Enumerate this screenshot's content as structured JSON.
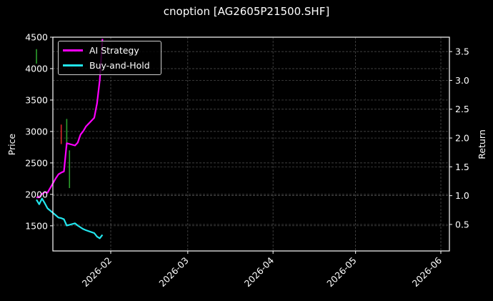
{
  "chart_data": {
    "type": "line",
    "title": "cnoption [AG2605P21500.SHF]",
    "xlabel": "",
    "ylabel": "Price",
    "y2label": "Return",
    "ylim": [
      1100,
      4500
    ],
    "y2lim": [
      0.04,
      3.75
    ],
    "yticks": [
      "1500",
      "2000",
      "2500",
      "3000",
      "3500",
      "4000",
      "4500"
    ],
    "y2ticks": [
      "0.5",
      "1.0",
      "1.5",
      "2.0",
      "2.5",
      "3.0",
      "3.5"
    ],
    "xticks": [
      "2026-02",
      "2026-03",
      "2026-04",
      "2026-05",
      "2026-06"
    ],
    "grid": true,
    "legend_position": "upper left",
    "background": "#000000",
    "series": [
      {
        "name": "AI Strategy",
        "axis": "right",
        "color": "#ff00ff",
        "x": [
          "2026-01-05",
          "2026-01-06",
          "2026-01-07",
          "2026-01-08",
          "2026-01-09",
          "2026-01-12",
          "2026-01-13",
          "2026-01-14",
          "2026-01-15",
          "2026-01-16",
          "2026-01-19",
          "2026-01-20",
          "2026-01-21",
          "2026-01-22",
          "2026-01-23",
          "2026-01-26",
          "2026-01-27",
          "2026-01-28",
          "2026-01-29"
        ],
        "values": [
          0.97,
          0.97,
          1.03,
          1.06,
          1.05,
          1.3,
          1.37,
          1.4,
          1.42,
          1.91,
          1.87,
          1.92,
          2.06,
          2.12,
          2.2,
          2.35,
          2.6,
          3.0,
          3.72
        ]
      },
      {
        "name": "Buy-and-Hold",
        "axis": "right",
        "color": "#22e6ee",
        "x": [
          "2026-01-05",
          "2026-01-06",
          "2026-01-07",
          "2026-01-08",
          "2026-01-09",
          "2026-01-12",
          "2026-01-13",
          "2026-01-14",
          "2026-01-15",
          "2026-01-16",
          "2026-01-19",
          "2026-01-20",
          "2026-01-21",
          "2026-01-22",
          "2026-01-23",
          "2026-01-26",
          "2026-01-27",
          "2026-01-28",
          "2026-01-29"
        ],
        "values": [
          0.93,
          0.85,
          0.95,
          0.87,
          0.78,
          0.66,
          0.62,
          0.61,
          0.59,
          0.48,
          0.52,
          0.48,
          0.45,
          0.42,
          0.4,
          0.35,
          0.29,
          0.26,
          0.32
        ]
      }
    ],
    "candles": [
      {
        "x": "2026-01-05",
        "low": 4080,
        "high": 4310,
        "color": "#2ca02c"
      },
      {
        "x": "2026-01-14",
        "low": 2800,
        "high": 3110,
        "color": "#d62728"
      },
      {
        "x": "2026-01-16",
        "low": 2750,
        "high": 3200,
        "color": "#2ca02c"
      },
      {
        "x": "2026-01-17",
        "low": 2100,
        "high": 2700,
        "color": "#2ca02c"
      }
    ]
  },
  "legend": {
    "items": [
      {
        "label": "AI Strategy",
        "color": "#ff00ff"
      },
      {
        "label": "Buy-and-Hold",
        "color": "#22e6ee"
      }
    ]
  }
}
